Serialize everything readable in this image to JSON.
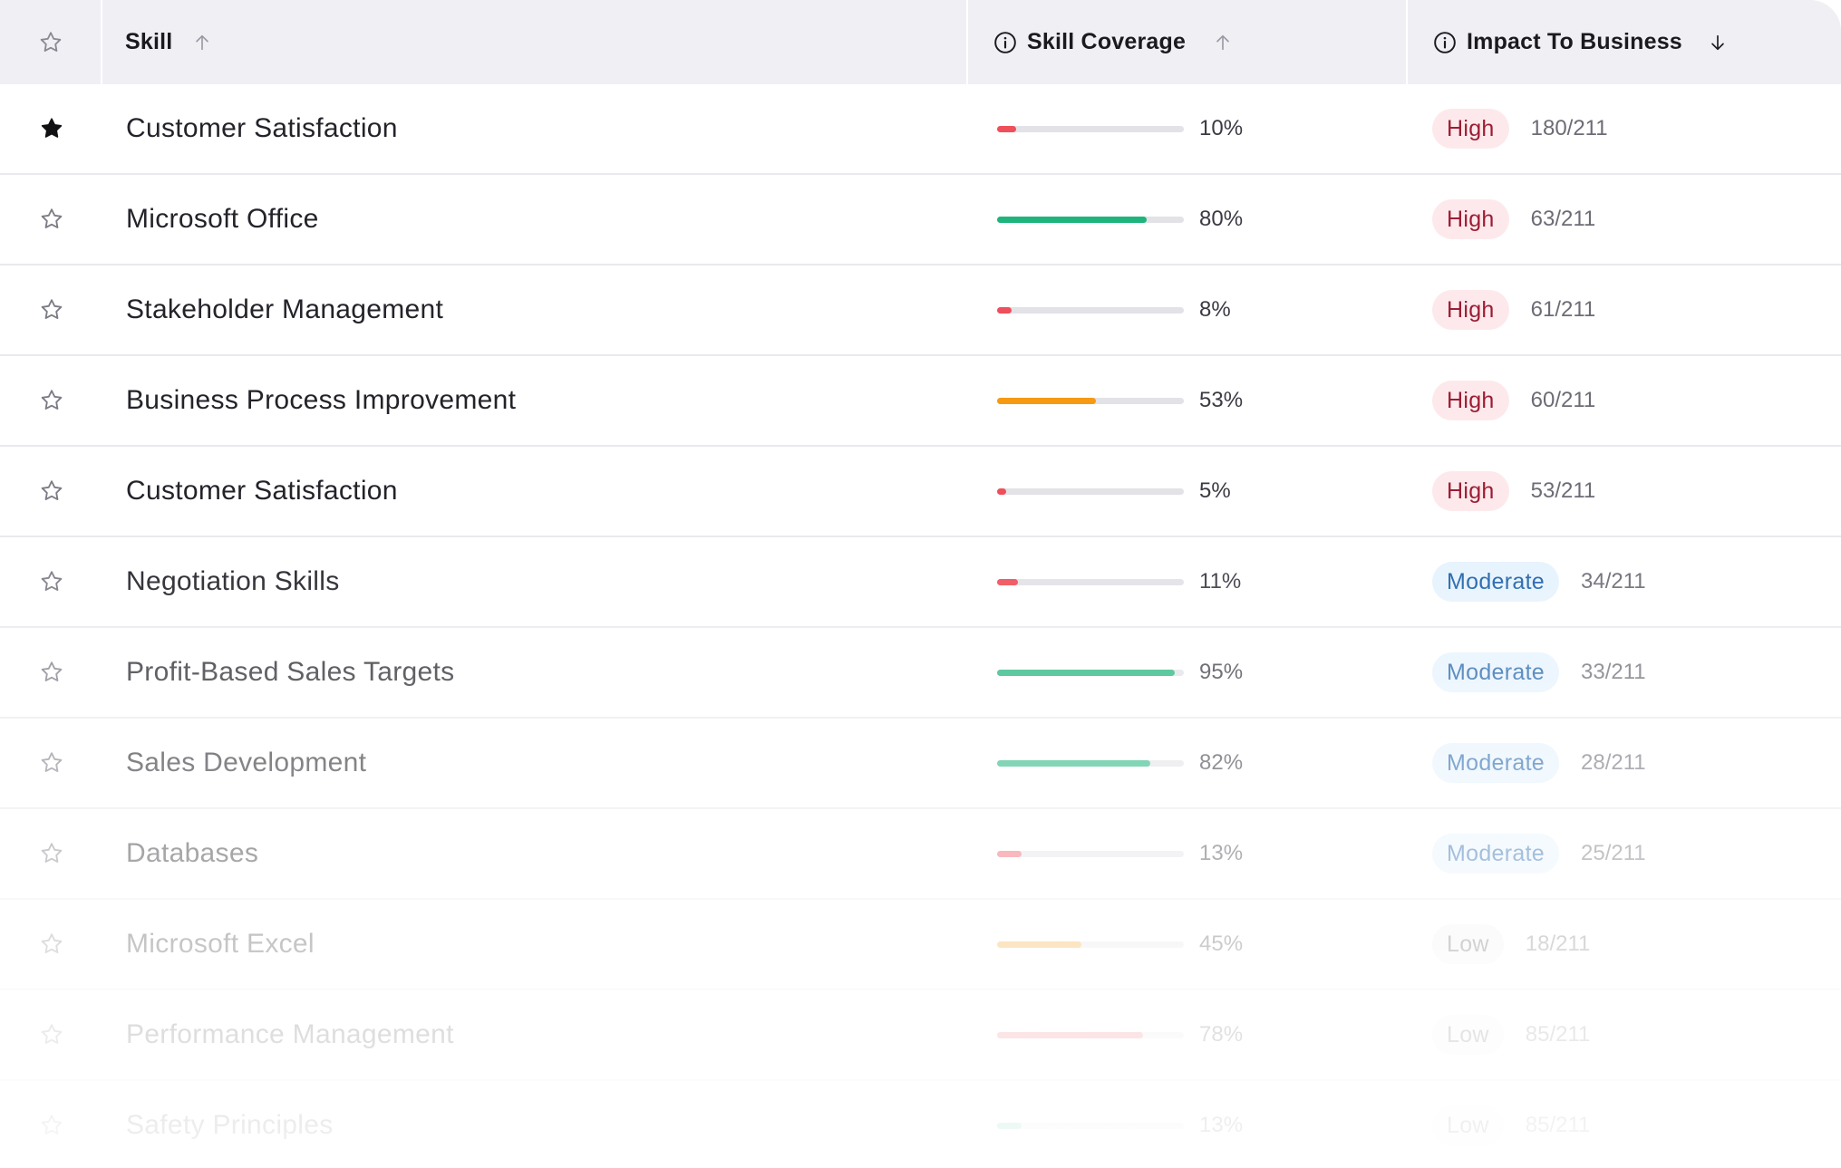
{
  "header": {
    "star_icon": "star-outline-icon",
    "skill_label": "Skill",
    "skill_sort": "arrow-up-icon",
    "coverage_label": "Skill Coverage",
    "coverage_sort": "arrow-up-icon",
    "impact_label": "Impact To Business",
    "impact_sort": "arrow-down-icon"
  },
  "colors": {
    "high_bg": "#fde9ec",
    "high_text": "#9c1d33",
    "moderate_bg": "#e6f3fd",
    "moderate_text": "#1f62a9",
    "low_bg": "#f1f1f3",
    "low_text": "#50505a",
    "bar_red": "#ef4f5a",
    "bar_green": "#1fb47c",
    "bar_orange": "#f59a12"
  },
  "rows": [
    {
      "starred": true,
      "skill": "Customer Satisfaction",
      "coverage": 10,
      "coverage_label": "10%",
      "bar_color": "#ef4f5a",
      "impact": "High",
      "impact_level": "high",
      "ratio": "180/211"
    },
    {
      "starred": false,
      "skill": "Microsoft Office",
      "coverage": 80,
      "coverage_label": "80%",
      "bar_color": "#1fb47c",
      "impact": "High",
      "impact_level": "high",
      "ratio": "63/211"
    },
    {
      "starred": false,
      "skill": "Stakeholder Management",
      "coverage": 8,
      "coverage_label": "8%",
      "bar_color": "#ef4f5a",
      "impact": "High",
      "impact_level": "high",
      "ratio": "61/211"
    },
    {
      "starred": false,
      "skill": "Business Process Improvement",
      "coverage": 53,
      "coverage_label": "53%",
      "bar_color": "#f59a12",
      "impact": "High",
      "impact_level": "high",
      "ratio": "60/211"
    },
    {
      "starred": false,
      "skill": "Customer Satisfaction",
      "coverage": 5,
      "coverage_label": "5%",
      "bar_color": "#ef4f5a",
      "impact": "High",
      "impact_level": "high",
      "ratio": "53/211"
    },
    {
      "starred": false,
      "skill": "Negotiation Skills",
      "coverage": 11,
      "coverage_label": "11%",
      "bar_color": "#ef4f5a",
      "impact": "Moderate",
      "impact_level": "moderate",
      "ratio": "34/211"
    },
    {
      "starred": false,
      "skill": "Profit-Based Sales Targets",
      "coverage": 95,
      "coverage_label": "95%",
      "bar_color": "#1fb47c",
      "impact": "Moderate",
      "impact_level": "moderate",
      "ratio": "33/211"
    },
    {
      "starred": false,
      "skill": "Sales Development",
      "coverage": 82,
      "coverage_label": "82%",
      "bar_color": "#1fb47c",
      "impact": "Moderate",
      "impact_level": "moderate",
      "ratio": "28/211"
    },
    {
      "starred": false,
      "skill": "Databases",
      "coverage": 13,
      "coverage_label": "13%",
      "bar_color": "#ef4f5a",
      "impact": "Moderate",
      "impact_level": "moderate",
      "ratio": "25/211"
    },
    {
      "starred": false,
      "skill": "Microsoft Excel",
      "coverage": 45,
      "coverage_label": "45%",
      "bar_color": "#f59a12",
      "impact": "Low",
      "impact_level": "low",
      "ratio": "18/211"
    },
    {
      "starred": false,
      "skill": "Performance Management",
      "coverage": 78,
      "coverage_label": "78%",
      "bar_color": "#ef4f5a",
      "impact": "Low",
      "impact_level": "low",
      "ratio": "85/211"
    },
    {
      "starred": false,
      "skill": "Safety Principles",
      "coverage": 13,
      "coverage_label": "13%",
      "bar_color": "#1fb47c",
      "impact": "Low",
      "impact_level": "low",
      "ratio": "85/211"
    }
  ]
}
